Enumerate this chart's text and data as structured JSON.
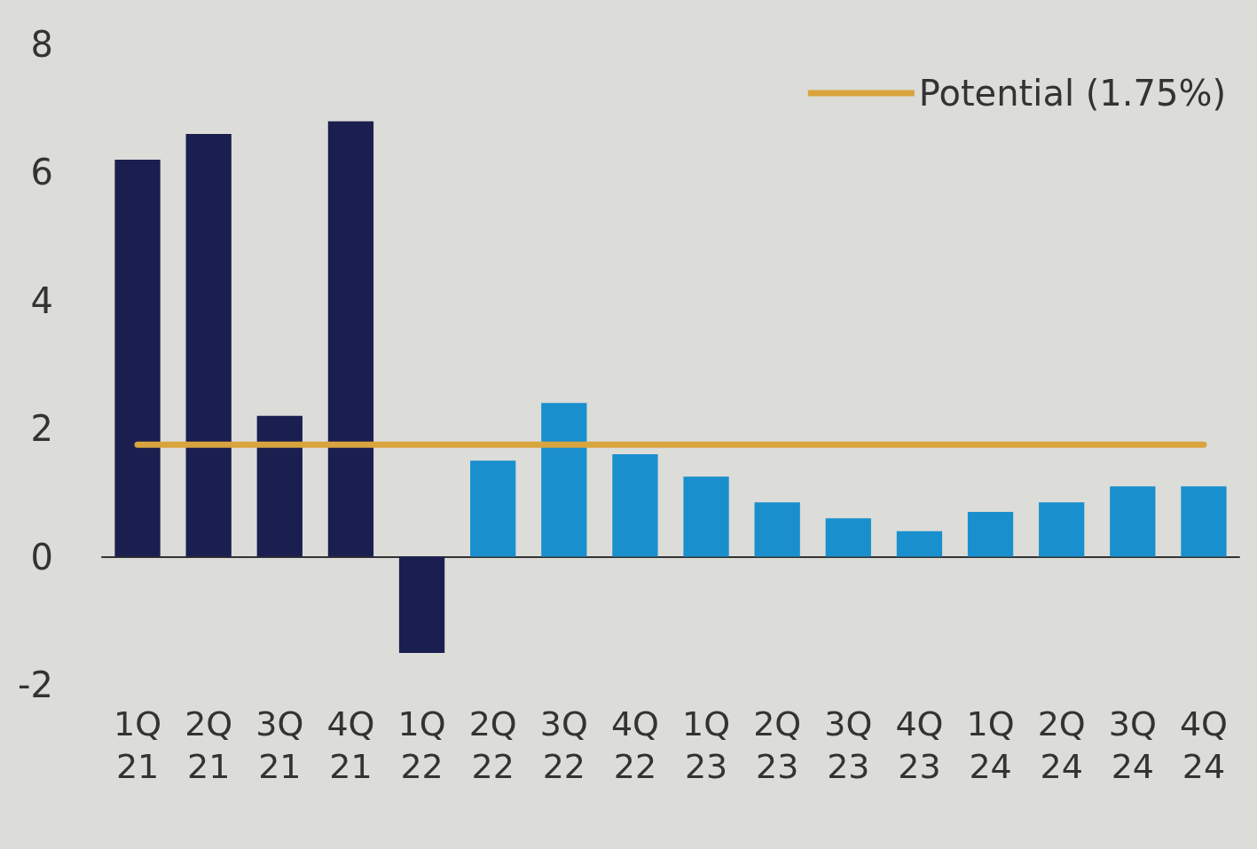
{
  "chart_data": {
    "type": "bar",
    "categories": [
      "1Q\n21",
      "2Q\n21",
      "3Q\n21",
      "4Q\n21",
      "1Q\n22",
      "2Q\n22",
      "3Q\n22",
      "4Q\n22",
      "1Q\n23",
      "2Q\n23",
      "3Q\n23",
      "4Q\n23",
      "1Q\n24",
      "2Q\n24",
      "3Q\n24",
      "4Q\n24"
    ],
    "series": [
      {
        "values": [
          6.2,
          6.6,
          2.2,
          6.8,
          -1.5,
          1.5,
          2.4,
          1.6,
          1.25,
          0.85,
          0.6,
          0.4,
          0.7,
          0.85,
          1.1,
          1.1
        ],
        "colors": [
          "#1b1f4f",
          "#1b1f4f",
          "#1b1f4f",
          "#1b1f4f",
          "#1b1f4f",
          "#1a8fce",
          "#1a8fce",
          "#1a8fce",
          "#1a8fce",
          "#1a8fce",
          "#1a8fce",
          "#1a8fce",
          "#1a8fce",
          "#1a8fce",
          "#1a8fce",
          "#1a8fce"
        ]
      },
      {
        "type": "line",
        "name": "Potential (1.75%)",
        "color": "#d9a43e",
        "values": [
          1.75,
          1.75,
          1.75,
          1.75,
          1.75,
          1.75,
          1.75,
          1.75,
          1.75,
          1.75,
          1.75,
          1.75,
          1.75,
          1.75,
          1.75,
          1.75
        ]
      }
    ],
    "ylim": [
      -2,
      8
    ],
    "yticks": [
      -2,
      0,
      2,
      4,
      6,
      8
    ],
    "legend": "top right",
    "marker": "none"
  }
}
